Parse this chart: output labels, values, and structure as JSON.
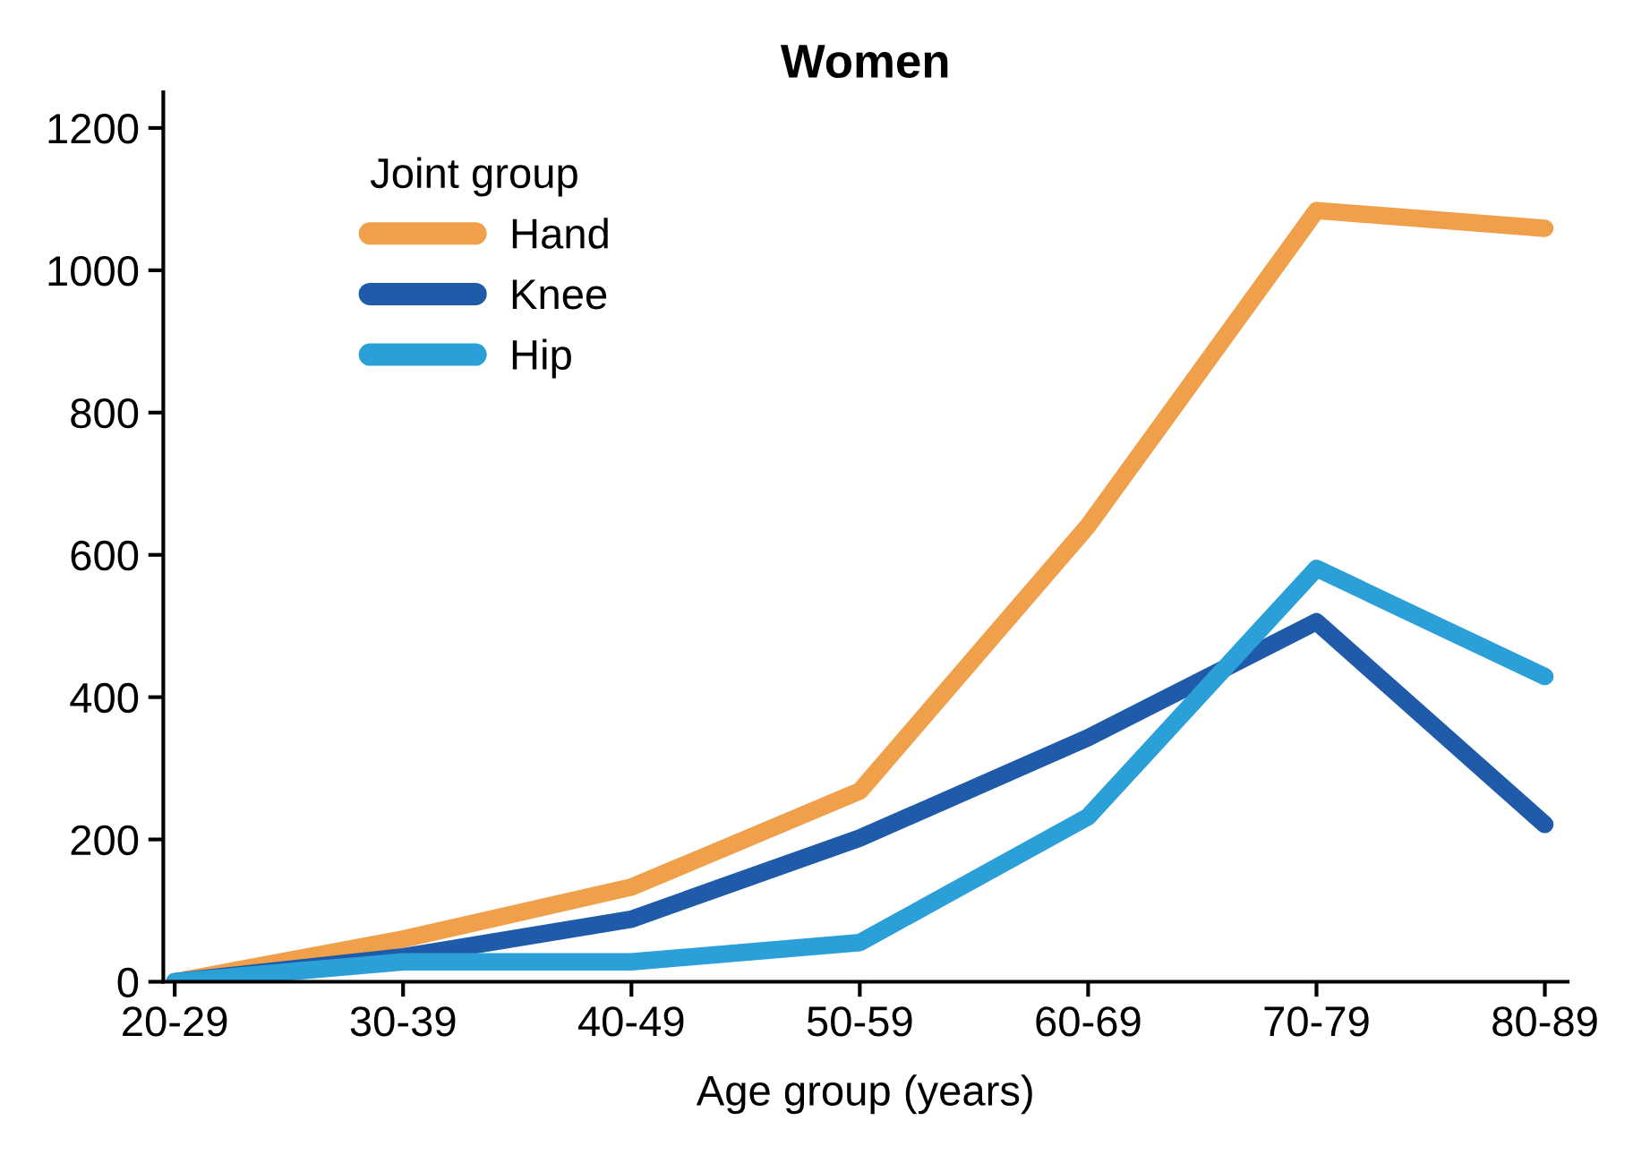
{
  "chart_data": {
    "type": "line",
    "title": "Women",
    "xlabel": "Age group (years)",
    "legend_title": "Joint group",
    "categories": [
      "20-29",
      "30-39",
      "40-49",
      "50-59",
      "60-69",
      "70-79",
      "80-89"
    ],
    "series": [
      {
        "name": "Hand",
        "color": "#f0a04b",
        "values": [
          0,
          60,
          133,
          268,
          641,
          1084,
          1059
        ]
      },
      {
        "name": "Knee",
        "color": "#1f5ba8",
        "values": [
          0,
          35,
          88,
          202,
          343,
          506,
          221
        ]
      },
      {
        "name": "Hip",
        "color": "#2a9fd8",
        "values": [
          0,
          28,
          28,
          55,
          232,
          581,
          429
        ]
      }
    ],
    "ylim": [
      0,
      1250
    ],
    "yticks": [
      0,
      200,
      400,
      600,
      800,
      1000,
      1200
    ],
    "grid": false,
    "legend": "top left",
    "marker": "none",
    "line_style": "solid"
  }
}
